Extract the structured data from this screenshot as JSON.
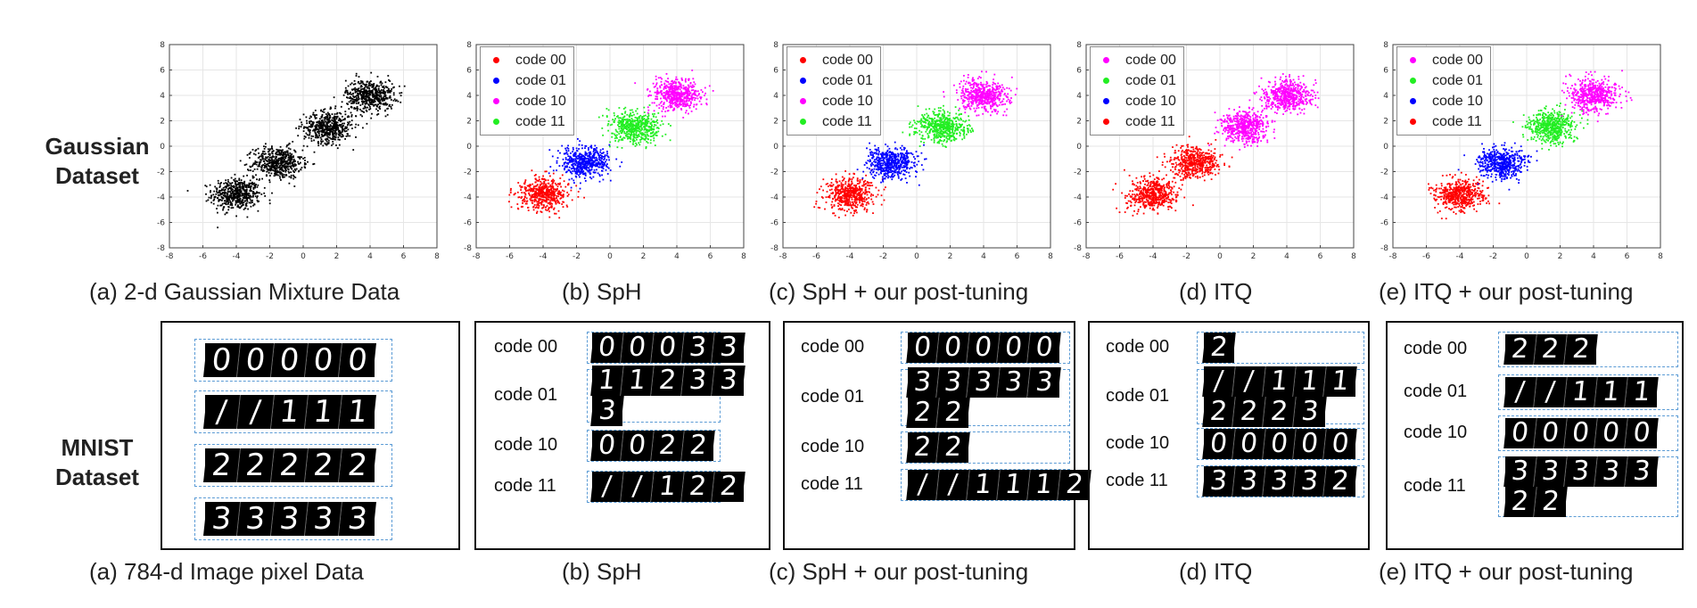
{
  "row_labels": {
    "gaussian": [
      "Gaussian",
      "Dataset"
    ],
    "mnist": [
      "MNIST",
      "Dataset"
    ]
  },
  "captions": {
    "top": [
      "(a)  2-d Gaussian Mixture Data",
      "(b) SpH",
      "(c) SpH + our post-tuning",
      "(d) ITQ",
      "(e) ITQ + our post-tuning"
    ],
    "bottom": [
      "(a)  784-d Image pixel Data",
      "(b) SpH",
      "(c) SpH + our post-tuning",
      "(d) ITQ",
      "(e) ITQ + our post-tuning"
    ]
  },
  "colors": {
    "red": "#ff0000",
    "blue": "#0000ff",
    "magenta": "#ff00ff",
    "green": "#22ee22",
    "black": "#000000",
    "dashed_box": "#5b9bd5"
  },
  "chart_data": [
    {
      "type": "scatter",
      "panel": "(a)",
      "title": "",
      "xlabel": "",
      "ylabel": "",
      "xlim": [
        -8,
        8
      ],
      "ylim": [
        -8,
        8
      ],
      "grid": true,
      "xticks": [
        "-8",
        "-6",
        "-4",
        "-2",
        "0",
        "2",
        "4",
        "6",
        "8"
      ],
      "yticks": [
        "8",
        "6",
        "4",
        "2",
        "0",
        "-2",
        "-4",
        "-6",
        "-8"
      ],
      "legend": [],
      "clusters": [
        {
          "center": [
            -4,
            -3.8
          ],
          "color": "#000000"
        },
        {
          "center": [
            -1.5,
            -1.3
          ],
          "color": "#000000"
        },
        {
          "center": [
            1.5,
            1.5
          ],
          "color": "#000000"
        },
        {
          "center": [
            4,
            4
          ],
          "color": "#000000"
        }
      ]
    },
    {
      "type": "scatter",
      "panel": "(b)",
      "title": "",
      "xlabel": "",
      "ylabel": "",
      "xlim": [
        -8,
        8
      ],
      "ylim": [
        -8,
        8
      ],
      "grid": true,
      "xticks": [
        "-8",
        "-6",
        "-4",
        "-2",
        "0",
        "2",
        "4",
        "6",
        "8"
      ],
      "yticks": [
        "8",
        "6",
        "4",
        "2",
        "0",
        "-2",
        "-4",
        "-6",
        "-8"
      ],
      "legend": [
        {
          "label": "code 00",
          "color": "#ff0000"
        },
        {
          "label": "code 01",
          "color": "#0000ff"
        },
        {
          "label": "code 10",
          "color": "#ff00ff"
        },
        {
          "label": "code 11",
          "color": "#22ee22"
        }
      ],
      "clusters": [
        {
          "center": [
            -4,
            -3.8
          ],
          "color": "#ff0000"
        },
        {
          "center": [
            -1.5,
            -1.3
          ],
          "color": "#0000ff"
        },
        {
          "center": [
            1.5,
            1.5
          ],
          "color": "#22ee22"
        },
        {
          "center": [
            4,
            4
          ],
          "color": "#ff00ff"
        }
      ]
    },
    {
      "type": "scatter",
      "panel": "(c)",
      "title": "",
      "xlabel": "",
      "ylabel": "",
      "xlim": [
        -8,
        8
      ],
      "ylim": [
        -8,
        8
      ],
      "grid": true,
      "xticks": [
        "-8",
        "-6",
        "-4",
        "-2",
        "0",
        "2",
        "4",
        "6",
        "8"
      ],
      "yticks": [
        "8",
        "6",
        "4",
        "2",
        "0",
        "-2",
        "-4",
        "-6",
        "-8"
      ],
      "legend": [
        {
          "label": "code 00",
          "color": "#ff0000"
        },
        {
          "label": "code 01",
          "color": "#0000ff"
        },
        {
          "label": "code 10",
          "color": "#ff00ff"
        },
        {
          "label": "code 11",
          "color": "#22ee22"
        }
      ],
      "clusters": [
        {
          "center": [
            -4,
            -3.8
          ],
          "color": "#ff0000"
        },
        {
          "center": [
            -1.5,
            -1.3
          ],
          "color": "#0000ff"
        },
        {
          "center": [
            1.5,
            1.5
          ],
          "color": "#22ee22"
        },
        {
          "center": [
            4,
            4
          ],
          "color": "#ff00ff"
        }
      ]
    },
    {
      "type": "scatter",
      "panel": "(d)",
      "title": "",
      "xlabel": "",
      "ylabel": "",
      "xlim": [
        -8,
        8
      ],
      "ylim": [
        -8,
        8
      ],
      "grid": true,
      "xticks": [
        "-8",
        "-6",
        "-4",
        "-2",
        "0",
        "2",
        "4",
        "6",
        "8"
      ],
      "yticks": [
        "8",
        "6",
        "4",
        "2",
        "0",
        "-2",
        "-4",
        "-6",
        "-8"
      ],
      "legend": [
        {
          "label": "code 00",
          "color": "#ff00ff"
        },
        {
          "label": "code 01",
          "color": "#22ee22"
        },
        {
          "label": "code 10",
          "color": "#0000ff"
        },
        {
          "label": "code 11",
          "color": "#ff0000"
        }
      ],
      "clusters": [
        {
          "center": [
            -4,
            -3.8
          ],
          "color": "#ff0000"
        },
        {
          "center": [
            -1.5,
            -1.3
          ],
          "color": "#ff0000"
        },
        {
          "center": [
            1.5,
            1.5
          ],
          "color": "#ff00ff"
        },
        {
          "center": [
            4,
            4
          ],
          "color": "#ff00ff"
        }
      ]
    },
    {
      "type": "scatter",
      "panel": "(e)",
      "title": "",
      "xlabel": "",
      "ylabel": "",
      "xlim": [
        -8,
        8
      ],
      "ylim": [
        -8,
        8
      ],
      "grid": true,
      "xticks": [
        "-8",
        "-6",
        "-4",
        "-2",
        "0",
        "2",
        "4",
        "6",
        "8"
      ],
      "yticks": [
        "8",
        "6",
        "4",
        "2",
        "0",
        "-2",
        "-4",
        "-6",
        "-8"
      ],
      "legend": [
        {
          "label": "code 00",
          "color": "#ff00ff"
        },
        {
          "label": "code 01",
          "color": "#22ee22"
        },
        {
          "label": "code 10",
          "color": "#0000ff"
        },
        {
          "label": "code 11",
          "color": "#ff0000"
        }
      ],
      "clusters": [
        {
          "center": [
            -4,
            -3.8
          ],
          "color": "#ff0000"
        },
        {
          "center": [
            -1.5,
            -1.3
          ],
          "color": "#0000ff"
        },
        {
          "center": [
            1.5,
            1.5
          ],
          "color": "#22ee22"
        },
        {
          "center": [
            4,
            4
          ],
          "color": "#ff00ff"
        }
      ]
    }
  ],
  "mnist_panels": [
    {
      "panel": "(a)",
      "rows": [
        {
          "label": "",
          "lines": [
            [
              "0",
              "0",
              "0",
              "0",
              "0"
            ]
          ]
        },
        {
          "label": "",
          "lines": [
            [
              "/",
              "/",
              "1",
              "1",
              "1"
            ]
          ]
        },
        {
          "label": "",
          "lines": [
            [
              "2",
              "2",
              "2",
              "2",
              "2"
            ]
          ]
        },
        {
          "label": "",
          "lines": [
            [
              "3",
              "3",
              "3",
              "3",
              "3"
            ]
          ]
        }
      ]
    },
    {
      "panel": "(b)",
      "rows": [
        {
          "label": "code 00",
          "lines": [
            [
              "0",
              "0",
              "0",
              "3",
              "3"
            ]
          ]
        },
        {
          "label": "code 01",
          "lines": [
            [
              "1",
              "1",
              "2",
              "3",
              "3"
            ],
            [
              "3"
            ]
          ]
        },
        {
          "label": "code 10",
          "lines": [
            [
              "0",
              "0",
              "2",
              "2"
            ]
          ]
        },
        {
          "label": "code 11",
          "lines": [
            [
              "/",
              "/",
              "1",
              "2",
              "2"
            ]
          ]
        }
      ]
    },
    {
      "panel": "(c)",
      "rows": [
        {
          "label": "code 00",
          "lines": [
            [
              "0",
              "0",
              "0",
              "0",
              "0"
            ]
          ]
        },
        {
          "label": "code 01",
          "lines": [
            [
              "3",
              "3",
              "3",
              "3",
              "3"
            ],
            [
              "2",
              "2"
            ]
          ]
        },
        {
          "label": "code 10",
          "lines": [
            [
              "2",
              "2"
            ]
          ]
        },
        {
          "label": "code 11",
          "lines": [
            [
              "/",
              "/",
              "1",
              "1",
              "1",
              "2"
            ]
          ]
        }
      ]
    },
    {
      "panel": "(d)",
      "rows": [
        {
          "label": "code 00",
          "lines": [
            [
              "2"
            ]
          ]
        },
        {
          "label": "code 01",
          "lines": [
            [
              "/",
              "/",
              "1",
              "1",
              "1"
            ],
            [
              "2",
              "2",
              "2",
              "3"
            ]
          ]
        },
        {
          "label": "code 10",
          "lines": [
            [
              "0",
              "0",
              "0",
              "0",
              "0"
            ]
          ]
        },
        {
          "label": "code 11",
          "lines": [
            [
              "3",
              "3",
              "3",
              "3",
              "2"
            ]
          ]
        }
      ]
    },
    {
      "panel": "(e)",
      "rows": [
        {
          "label": "code 00",
          "lines": [
            [
              "2",
              "2",
              "2"
            ]
          ]
        },
        {
          "label": "code 01",
          "lines": [
            [
              "/",
              "/",
              "1",
              "1",
              "1"
            ]
          ]
        },
        {
          "label": "code 10",
          "lines": [
            [
              "0",
              "0",
              "0",
              "0",
              "0"
            ]
          ]
        },
        {
          "label": "code 11",
          "lines": [
            [
              "3",
              "3",
              "3",
              "3",
              "3"
            ],
            [
              "2",
              "2"
            ]
          ]
        }
      ]
    }
  ]
}
